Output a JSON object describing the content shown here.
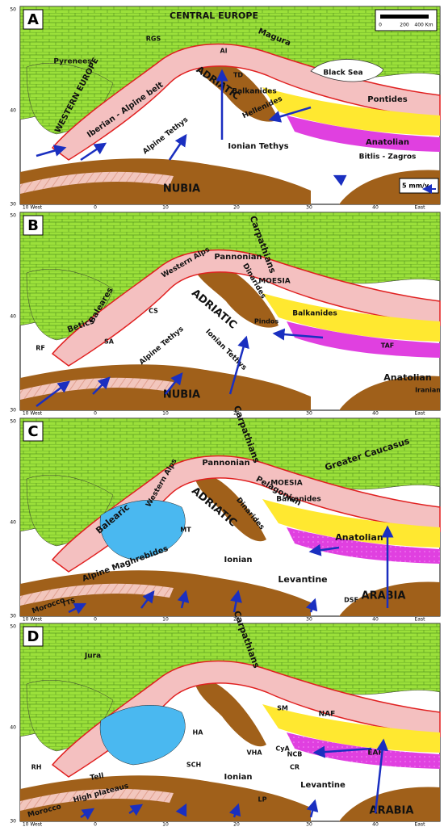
{
  "axes": {
    "x_labels": [
      "10 West",
      "0",
      "10",
      "20",
      "30",
      "40",
      "East"
    ],
    "y_labels": [
      "30",
      "40",
      "50"
    ]
  },
  "scale_bar": [
    "0",
    "200",
    "400 Km"
  ],
  "velocity_key": "5 mm/y",
  "panels": [
    {
      "letter": "A",
      "labels": [
        "CENTRAL EUROPE",
        "WESTERN EUROPE",
        "Pyrenees",
        "Iberian - Alpine belt",
        "ADRIATIC",
        "Alpine Tethys",
        "Ionian Tethys",
        "NUBIA",
        "Magura",
        "Balkanides",
        "Hellenides",
        "Pontides",
        "Anatolian",
        "Bitlis - Zagros",
        "Black Sea",
        "Al",
        "TD",
        "RGS"
      ]
    },
    {
      "letter": "B",
      "labels": [
        "Carpathians",
        "Pannonian",
        "Western Alps",
        "Dinarides",
        "ADRIATIC",
        "MOESIA",
        "Balkanides",
        "Baleares",
        "Betics",
        "Alpine Tethys",
        "Ionian Tethys",
        "NUBIA",
        "Anatolian",
        "TAF",
        "Iranian",
        "Pindos",
        "SA",
        "RF",
        "CS"
      ]
    },
    {
      "letter": "C",
      "labels": [
        "Carpathians",
        "Pannonian",
        "Western Alps",
        "ADRIATIC",
        "Dinarides",
        "MOESIA",
        "Balkanides",
        "Greater Caucasus",
        "Anatolian",
        "Balearic",
        "Alpine Maghrebides",
        "Morocco",
        "TTS",
        "Ionian",
        "Levantine",
        "ARABIA",
        "DSF",
        "Pelagonian",
        "MT"
      ]
    },
    {
      "letter": "D",
      "labels": [
        "Carpathians",
        "Jura",
        "High plateaus",
        "Morocco",
        "Tell",
        "Ionian",
        "Levantine",
        "ARABIA",
        "NAF",
        "EAF",
        "SM",
        "CyA",
        "NCB",
        "CR",
        "HA",
        "VHA",
        "LP",
        "SCH",
        "RH"
      ]
    }
  ]
}
